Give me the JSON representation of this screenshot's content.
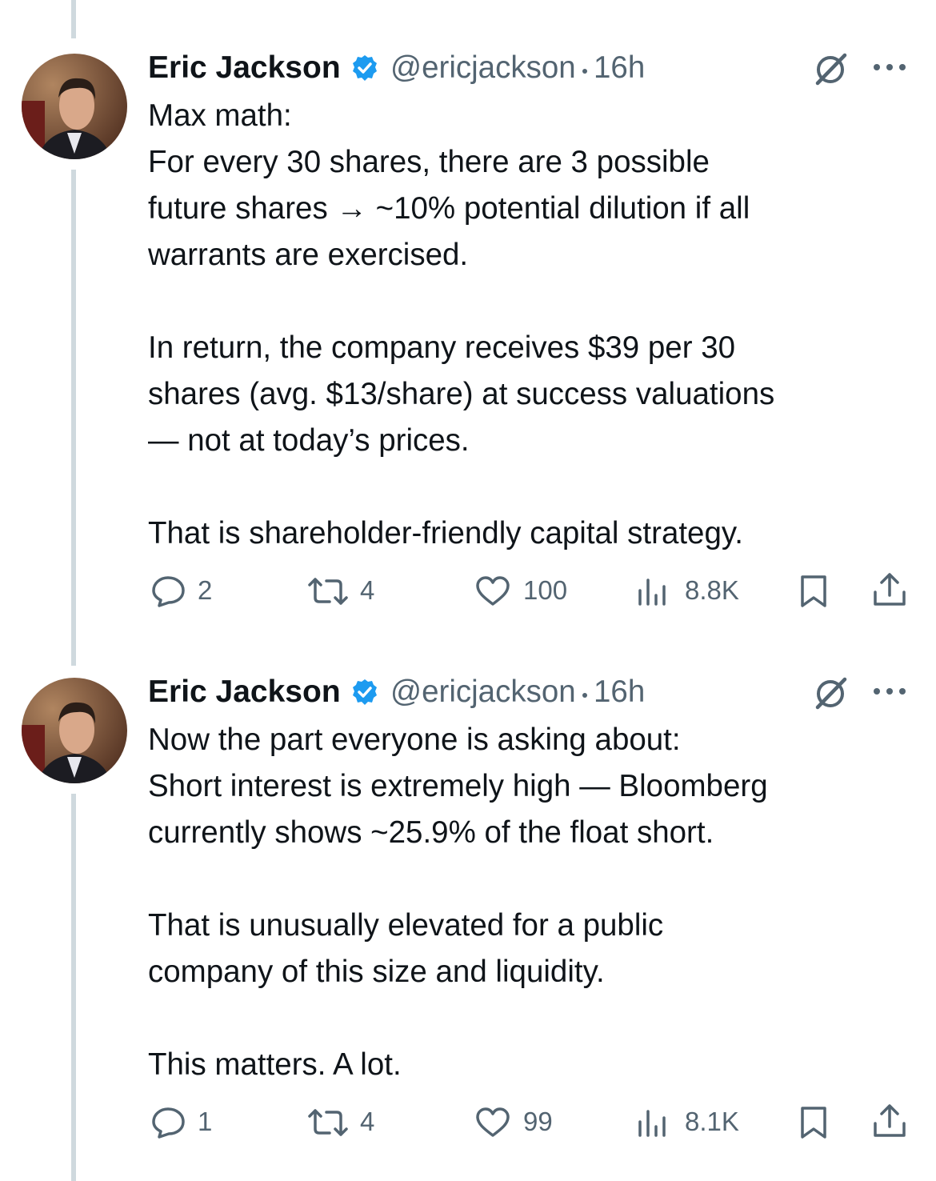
{
  "tweets": [
    {
      "author": "Eric Jackson",
      "handle": "@ericjackson",
      "time": "16h",
      "paragraphs": [
        [
          "Max math:",
          "For every 30 shares, there are 3 possible",
          "future shares → ~10% potential dilution if all",
          "warrants are exercised."
        ],
        [
          "In return, the company receives $39 per 30",
          "shares (avg. $13/share) at success valuations",
          "— not at today’s prices."
        ],
        [
          "That is shareholder-friendly capital strategy."
        ]
      ],
      "stats": {
        "replies": 2,
        "reposts": 4,
        "likes": 100,
        "views": "8.8K"
      }
    },
    {
      "author": "Eric Jackson",
      "handle": "@ericjackson",
      "time": "16h",
      "paragraphs": [
        [
          "Now the part everyone is asking about:",
          "Short interest is extremely high — Bloomberg",
          "currently shows ~25.9% of the float short."
        ],
        [
          "That is unusually elevated for a public",
          "company of this size and liquidity."
        ],
        [
          "This matters. A lot."
        ]
      ],
      "stats": {
        "replies": 1,
        "reposts": 4,
        "likes": 99,
        "views": "8.1K"
      }
    }
  ]
}
